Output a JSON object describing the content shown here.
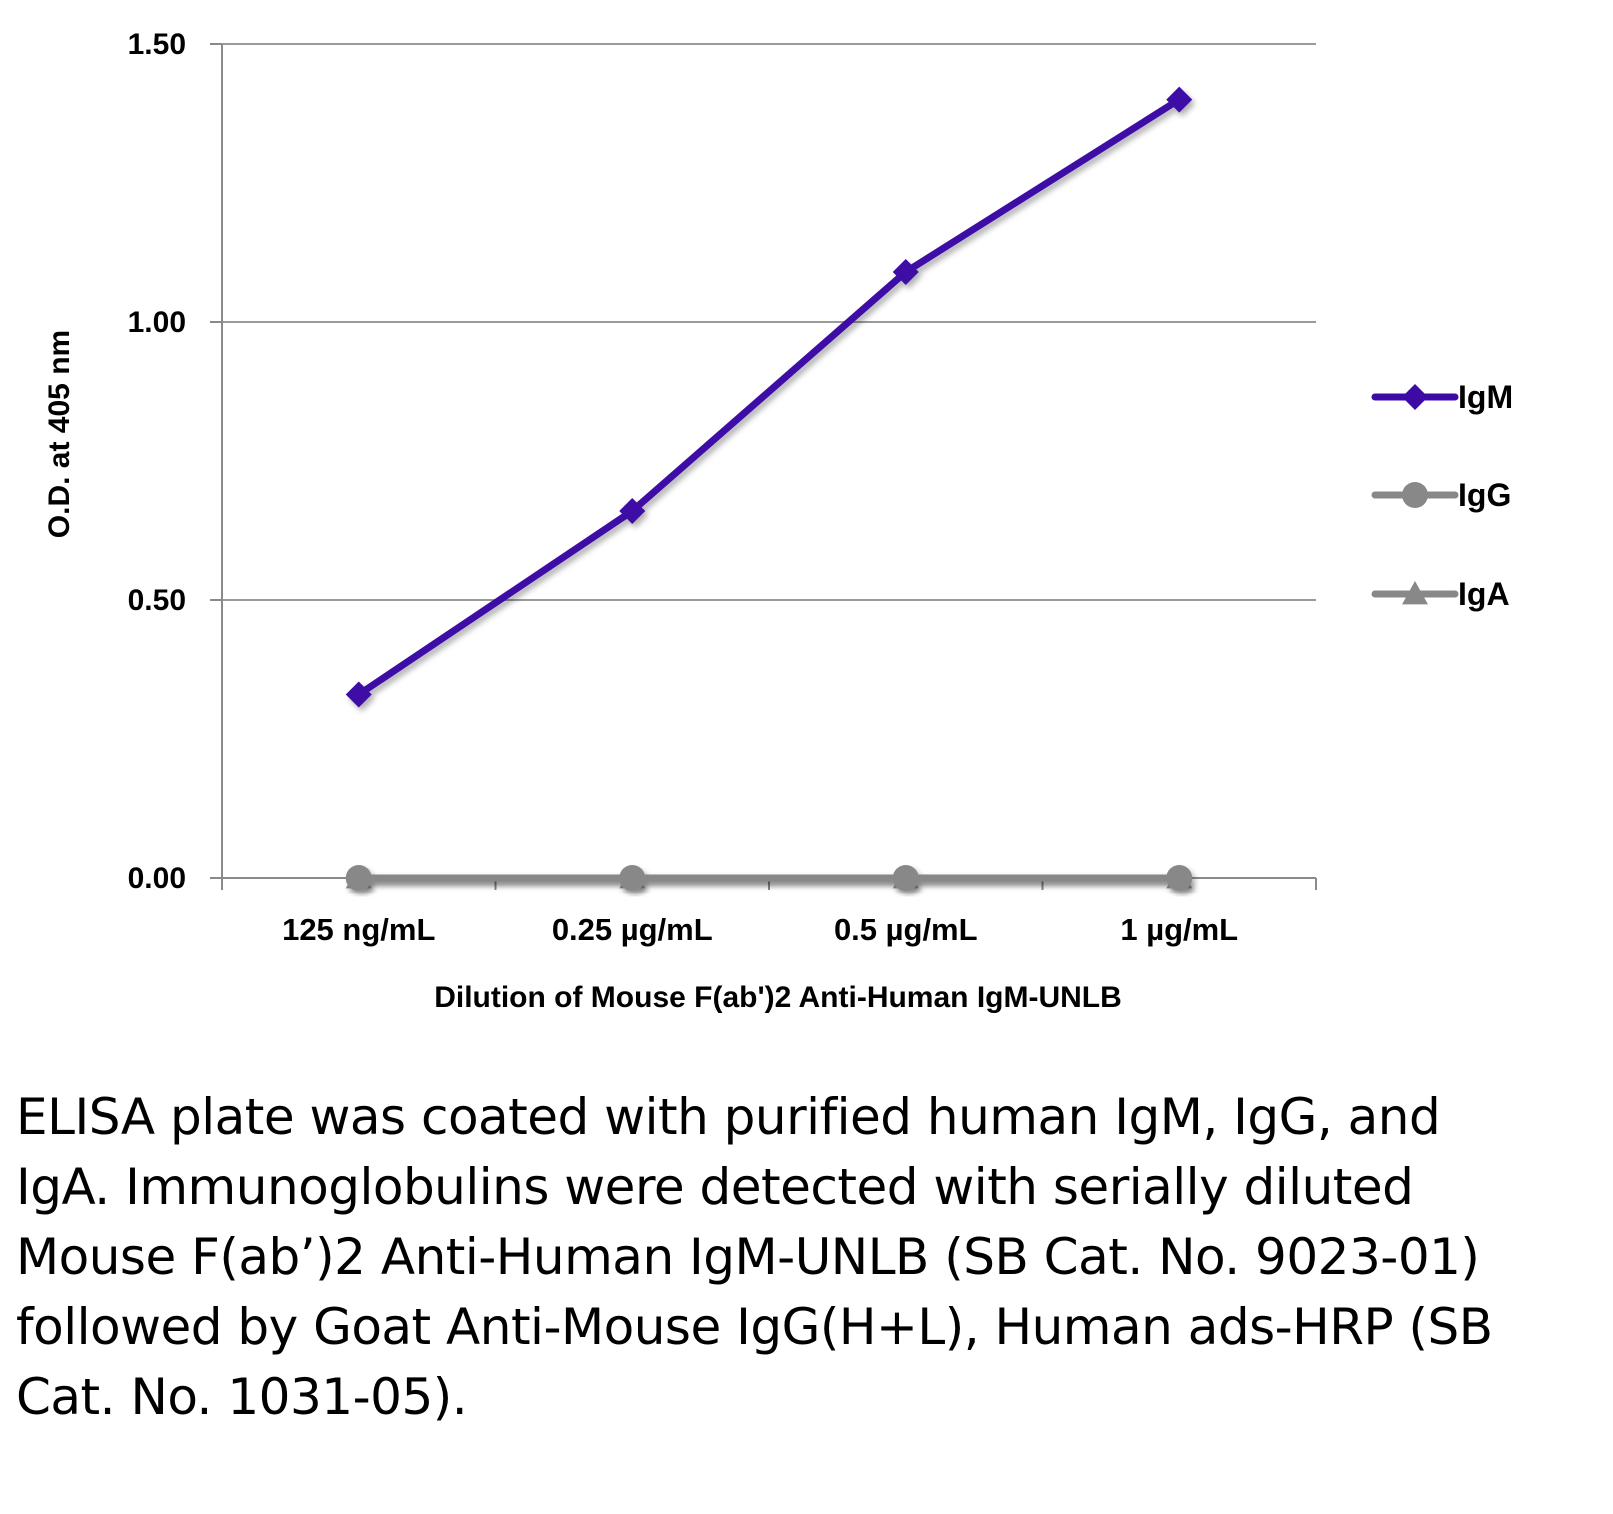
{
  "chart_data": {
    "type": "line",
    "title": "",
    "categories": [
      "125 ng/mL",
      "0.25 µg/mL",
      "0.5 µg/mL",
      "1 µg/mL"
    ],
    "series": [
      {
        "name": "IgM",
        "values": [
          0.33,
          0.66,
          1.09,
          1.4
        ],
        "color": "#3d0aa6",
        "marker": "diamond"
      },
      {
        "name": "IgG",
        "values": [
          0.0,
          0.0,
          0.0,
          0.0
        ],
        "color": "#888888",
        "marker": "circle"
      },
      {
        "name": "IgA",
        "values": [
          0.0,
          0.0,
          0.0,
          0.0
        ],
        "color": "#888888",
        "marker": "triangle"
      }
    ],
    "xlabel": "Dilution of Mouse F(ab')2  Anti-Human IgM-UNLB",
    "ylabel": "O.D. at 405 nm",
    "ylim": [
      0,
      1.5
    ],
    "yticks": [
      "0.00",
      "0.50",
      "1.00",
      "1.50"
    ],
    "grid": true,
    "legend": "right"
  },
  "caption": "ELISA plate was coated with purified human IgM, IgG, and IgA.  Immunoglobulins were detected with serially diluted Mouse F(ab’)2 Anti-Human IgM-UNLB (SB Cat. No. 9023-01) followed by Goat Anti-Mouse IgG(H+L), Human ads-HRP (SB Cat. No. 1031-05)."
}
